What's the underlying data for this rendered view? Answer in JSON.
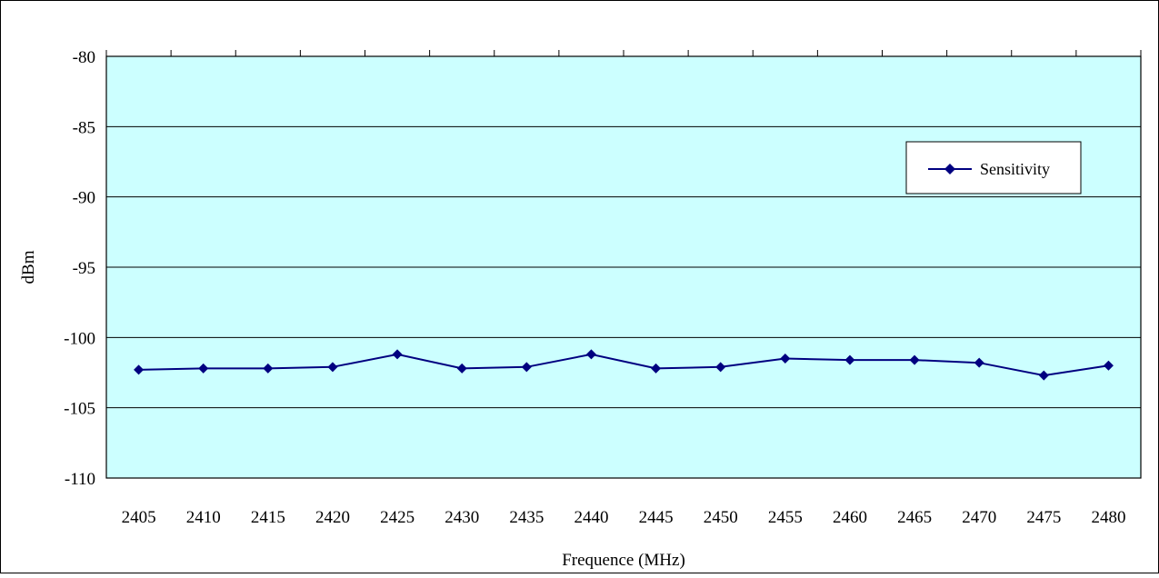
{
  "chart_data": {
    "type": "line",
    "title": "",
    "xlabel": "Frequence (MHz)",
    "ylabel": "dBm",
    "categories": [
      "2405",
      "2410",
      "2415",
      "2420",
      "2425",
      "2430",
      "2435",
      "2440",
      "2445",
      "2450",
      "2455",
      "2460",
      "2465",
      "2470",
      "2475",
      "2480"
    ],
    "series": [
      {
        "name": "Sensitivity",
        "values": [
          -102.3,
          -102.2,
          -102.2,
          -102.1,
          -101.2,
          -102.2,
          -102.1,
          -101.2,
          -102.2,
          -102.1,
          -101.5,
          -101.6,
          -101.6,
          -101.8,
          -102.7,
          -102.0
        ]
      }
    ],
    "ylim": [
      -110,
      -80
    ],
    "yticks": [
      "-80",
      "-85",
      "-90",
      "-95",
      "-100",
      "-105",
      "-110"
    ],
    "grid": true,
    "legend_position": "top-right",
    "colors": {
      "plot_background": "#ccffff",
      "series_line": "#000080",
      "gridline": "#000000"
    }
  }
}
